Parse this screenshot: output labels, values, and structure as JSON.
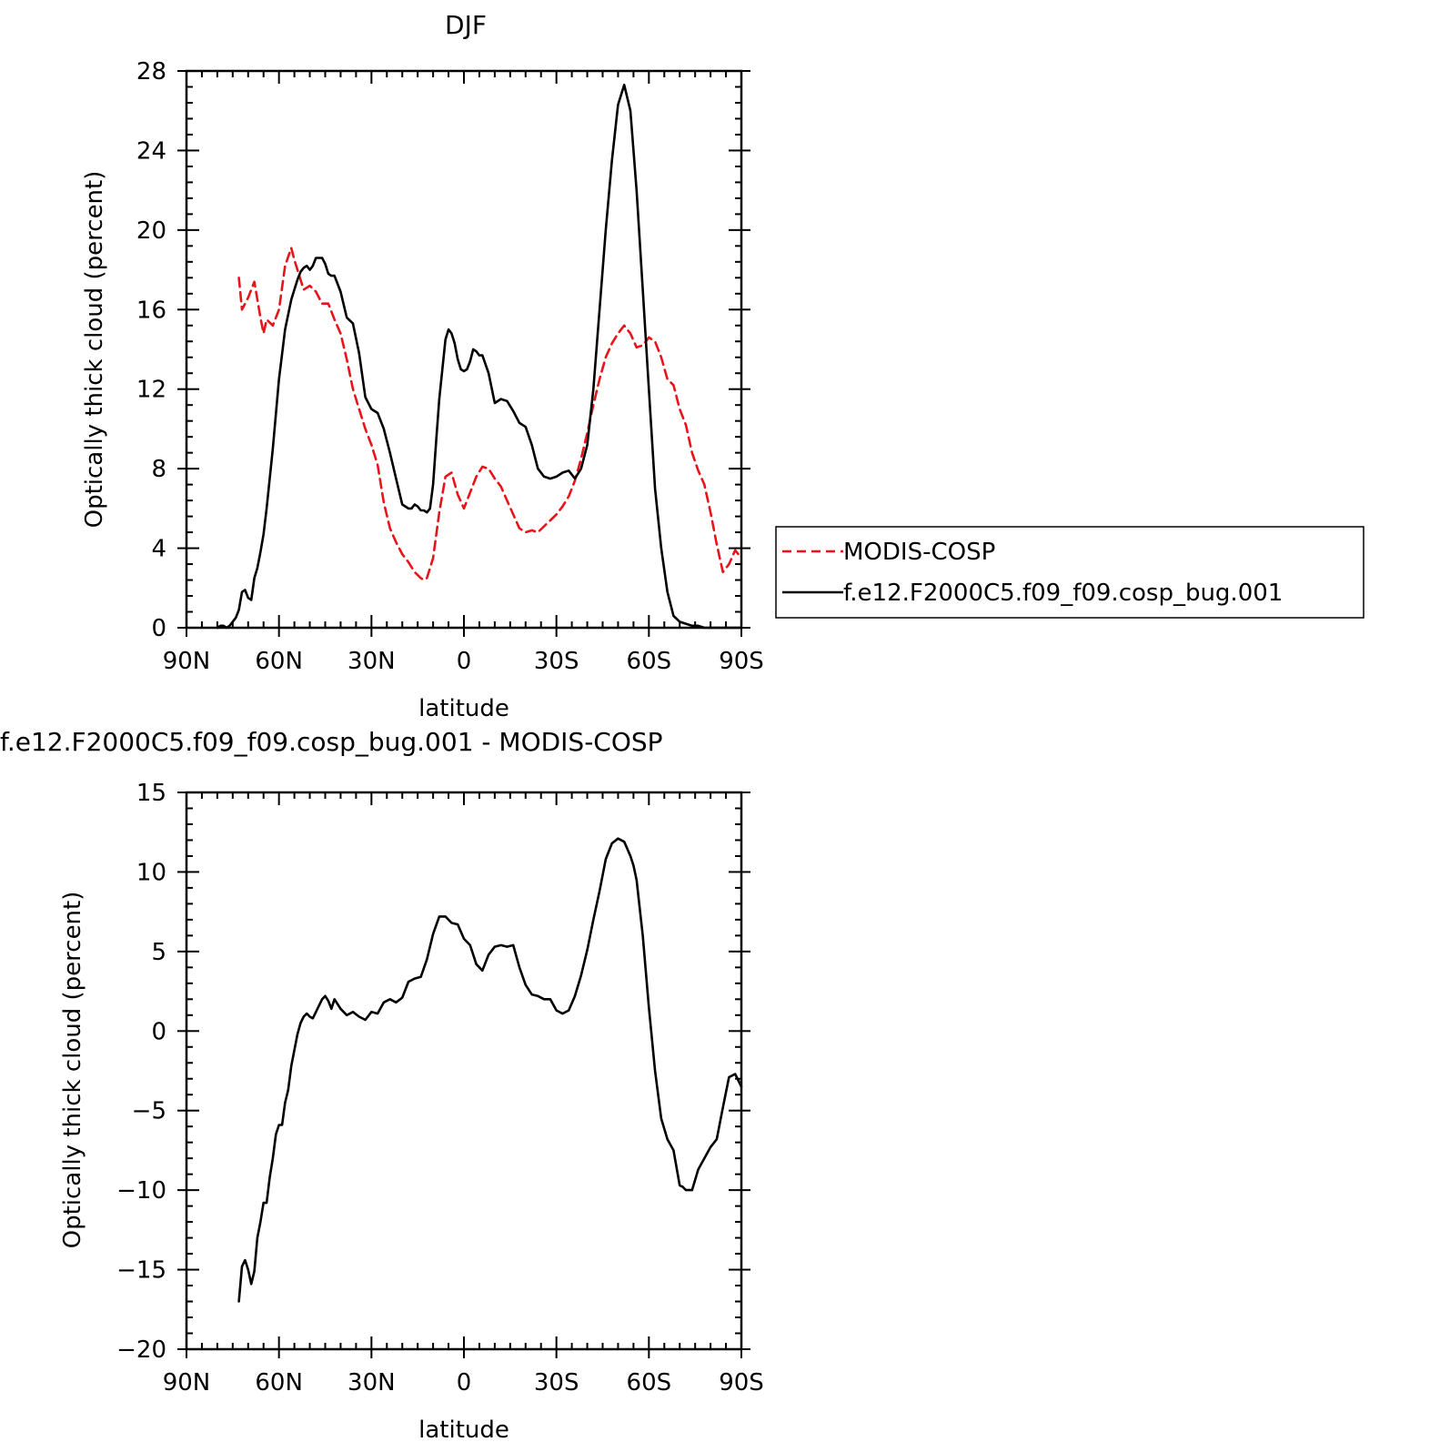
{
  "chart_data": [
    {
      "type": "line",
      "title": "DJF",
      "xlabel": "latitude",
      "ylabel": "Optically thick cloud (percent)",
      "xlim": [
        90,
        -90
      ],
      "ylim": [
        0,
        28
      ],
      "x_tick_labels": [
        "90N",
        "60N",
        "30N",
        "0",
        "30S",
        "60S",
        "90S"
      ],
      "y_tick_labels": [
        "0",
        "4",
        "8",
        "12",
        "16",
        "20",
        "24",
        "28"
      ],
      "legend": {
        "placement": "right",
        "entries": [
          "MODIS-COSP",
          "f.e12.F2000C5.f09_f09.cosp_bug.001"
        ]
      },
      "series": [
        {
          "name": "MODIS-COSP",
          "color": "#e8141b",
          "dash": true,
          "x": [
            73,
            72,
            70,
            68,
            66,
            65,
            64,
            62,
            60,
            58,
            56,
            55,
            52,
            50,
            48,
            46,
            44,
            42,
            40,
            38,
            36,
            34,
            32,
            30,
            28,
            26,
            24,
            22,
            20,
            18,
            16,
            14,
            13,
            12,
            10,
            8,
            6,
            4,
            2,
            0,
            -2,
            -4,
            -6,
            -8,
            -10,
            -12,
            -14,
            -16,
            -18,
            -20,
            -22,
            -24,
            -26,
            -28,
            -30,
            -32,
            -34,
            -36,
            -38,
            -40,
            -42,
            -44,
            -46,
            -48,
            -50,
            -52,
            -54,
            -56,
            -58,
            -60,
            -62,
            -64,
            -66,
            -68,
            -70,
            -72,
            -74,
            -76,
            -78,
            -80,
            -82,
            -84,
            -86,
            -88,
            -90
          ],
          "y": [
            17.6,
            16.0,
            16.6,
            17.4,
            15.6,
            14.8,
            15.5,
            15.2,
            16.0,
            18.2,
            19.1,
            18.5,
            17.0,
            17.2,
            16.9,
            16.3,
            16.3,
            15.5,
            14.8,
            13.5,
            12.0,
            11.0,
            10.0,
            9.2,
            8.2,
            6.3,
            5.0,
            4.3,
            3.7,
            3.3,
            2.8,
            2.5,
            2.4,
            2.5,
            3.5,
            5.8,
            7.6,
            7.8,
            6.7,
            6.0,
            6.8,
            7.6,
            8.1,
            8.0,
            7.5,
            7.1,
            6.4,
            5.7,
            5.0,
            4.8,
            4.9,
            4.8,
            5.1,
            5.4,
            5.7,
            6.1,
            6.6,
            7.4,
            8.5,
            9.8,
            11.2,
            12.5,
            13.6,
            14.3,
            14.8,
            15.2,
            14.8,
            14.1,
            14.2,
            14.6,
            14.4,
            13.6,
            12.5,
            12.2,
            11.0,
            10.2,
            8.8,
            7.9,
            7.2,
            5.8,
            4.2,
            2.8,
            3.2,
            3.9,
            3.5
          ]
        },
        {
          "name": "f.e12.F2000C5.f09_f09.cosp_bug.001",
          "color": "#000000",
          "dash": false,
          "x": [
            80,
            79,
            78,
            77,
            76,
            75,
            74,
            73,
            72,
            71,
            70,
            69,
            68,
            67,
            66,
            65,
            64,
            62,
            60,
            58,
            56,
            55,
            54,
            53,
            52,
            51,
            50,
            49,
            48,
            47,
            46,
            45,
            44,
            43,
            42,
            40,
            38,
            36,
            34,
            32,
            30,
            28,
            26,
            24,
            22,
            20,
            18,
            17,
            16,
            15,
            14,
            13,
            12,
            11,
            10,
            9,
            8,
            7,
            6,
            5,
            4,
            3,
            2,
            1,
            0,
            -1,
            -2,
            -3,
            -4,
            -5,
            -6,
            -8,
            -10,
            -12,
            -14,
            -16,
            -18,
            -20,
            -22,
            -24,
            -26,
            -28,
            -30,
            -32,
            -34,
            -36,
            -38,
            -40,
            -42,
            -44,
            -46,
            -48,
            -50,
            -52,
            -54,
            -55,
            -56,
            -58,
            -60,
            -62,
            -64,
            -66,
            -68,
            -70,
            -72,
            -74,
            -76,
            -78,
            -80,
            -82,
            -84,
            -86,
            -88,
            -90
          ],
          "y": [
            0.0,
            0.1,
            0.1,
            0.0,
            0.1,
            0.3,
            0.5,
            0.9,
            1.8,
            1.9,
            1.5,
            1.4,
            2.5,
            3.0,
            3.8,
            4.7,
            6.0,
            9.0,
            12.5,
            15.0,
            16.5,
            17.0,
            17.5,
            17.9,
            18.1,
            18.2,
            18.0,
            18.2,
            18.6,
            18.6,
            18.6,
            18.3,
            17.8,
            17.7,
            17.7,
            16.9,
            15.6,
            15.3,
            13.8,
            11.6,
            11.0,
            10.8,
            10.0,
            8.8,
            7.5,
            6.2,
            6.0,
            6.0,
            6.2,
            6.1,
            5.9,
            5.9,
            5.8,
            6.0,
            7.2,
            9.4,
            11.5,
            13.0,
            14.5,
            15.0,
            14.8,
            14.3,
            13.5,
            13.0,
            12.9,
            13.0,
            13.4,
            14.0,
            13.9,
            13.7,
            13.7,
            12.8,
            11.3,
            11.5,
            11.4,
            10.9,
            10.3,
            10.1,
            9.2,
            8.0,
            7.6,
            7.5,
            7.6,
            7.8,
            7.9,
            7.5,
            8.0,
            9.2,
            12.0,
            16.0,
            20.0,
            23.5,
            26.3,
            27.3,
            26.0,
            24.0,
            22.0,
            17.0,
            12.0,
            7.0,
            4.0,
            1.8,
            0.6,
            0.3,
            0.2,
            0.1,
            0.1,
            0.0,
            0.0,
            0.0,
            0.0,
            0.0,
            0.0,
            0.0
          ]
        }
      ]
    },
    {
      "type": "line",
      "title": "f.e12.F2000C5.f09_f09.cosp_bug.001 - MODIS-COSP",
      "xlabel": "latitude",
      "ylabel": "Optically thick cloud (percent)",
      "xlim": [
        90,
        -90
      ],
      "ylim": [
        -20,
        15
      ],
      "x_tick_labels": [
        "90N",
        "60N",
        "30N",
        "0",
        "30S",
        "60S",
        "90S"
      ],
      "y_tick_labels": [
        "−20",
        "−15",
        "−10",
        "−5",
        "0",
        "5",
        "10",
        "15"
      ],
      "series": [
        {
          "color": "#000000",
          "dash": false,
          "x": [
            73,
            72,
            71,
            70,
            69,
            68,
            67,
            66,
            65,
            64,
            63,
            62,
            61,
            60,
            59,
            58,
            57,
            56,
            55,
            54,
            53,
            52,
            51,
            50,
            49,
            48,
            47,
            46,
            45,
            44,
            43,
            42,
            40,
            38,
            36,
            34,
            32,
            30,
            28,
            26,
            24,
            22,
            20,
            18,
            16,
            14,
            12,
            10,
            8,
            6,
            4,
            2,
            0,
            -2,
            -4,
            -6,
            -8,
            -10,
            -12,
            -14,
            -16,
            -18,
            -20,
            -22,
            -24,
            -26,
            -28,
            -30,
            -32,
            -34,
            -36,
            -38,
            -40,
            -42,
            -44,
            -46,
            -48,
            -50,
            -52,
            -54,
            -55,
            -56,
            -58,
            -60,
            -62,
            -64,
            -66,
            -68,
            -70,
            -71,
            -72,
            -73,
            -74,
            -76,
            -78,
            -80,
            -82,
            -84,
            -86,
            -88,
            -90
          ],
          "y": [
            -17.0,
            -14.8,
            -14.4,
            -15.0,
            -15.9,
            -15.1,
            -13.0,
            -12.0,
            -10.8,
            -10.8,
            -9.2,
            -8.0,
            -6.5,
            -5.9,
            -5.9,
            -4.5,
            -3.7,
            -2.2,
            -1.2,
            -0.2,
            0.5,
            0.9,
            1.1,
            0.9,
            0.8,
            1.2,
            1.6,
            2.0,
            2.2,
            1.9,
            1.4,
            2.0,
            1.4,
            1.0,
            1.2,
            0.9,
            0.7,
            1.2,
            1.1,
            1.8,
            2.0,
            1.8,
            2.1,
            3.1,
            3.3,
            3.4,
            4.5,
            6.1,
            7.2,
            7.2,
            6.8,
            6.7,
            5.8,
            5.4,
            4.2,
            3.8,
            4.8,
            5.3,
            5.4,
            5.3,
            5.4,
            4.0,
            2.9,
            2.3,
            2.2,
            2.0,
            2.0,
            1.3,
            1.1,
            1.3,
            2.2,
            3.5,
            5.1,
            7.0,
            8.8,
            10.8,
            11.8,
            12.1,
            11.9,
            11.0,
            10.4,
            9.5,
            6.0,
            1.5,
            -2.5,
            -5.5,
            -6.8,
            -7.5,
            -9.7,
            -9.8,
            -10.0,
            -10.0,
            -10.0,
            -8.7,
            -8.0,
            -7.3,
            -6.8,
            -4.8,
            -2.9,
            -2.7,
            -3.5
          ]
        }
      ]
    }
  ]
}
